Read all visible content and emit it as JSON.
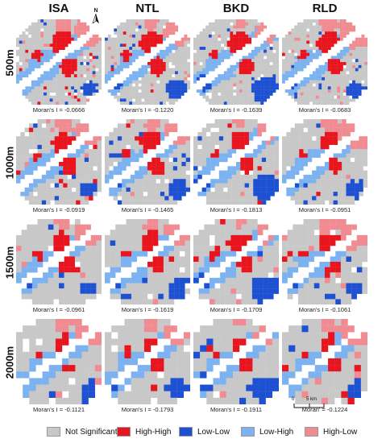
{
  "columns": [
    "ISA",
    "NTL",
    "BKD",
    "RLD"
  ],
  "rows": [
    "500m",
    "1000m",
    "1500m",
    "2000m"
  ],
  "moran": [
    [
      "Moran's I = -0.0666",
      "Moran's I = -0.1220",
      "Moran's I = -0.1639",
      "Moran's I = -0.0683"
    ],
    [
      "Moran's I = -0.0919",
      "Moran's I = -0.1465",
      "Moran's I = -0.1813",
      "Moran's I = -0.0951"
    ],
    [
      "Moran's I = -0.0961",
      "Moran's I = -0.1619",
      "Moran's I = -0.1709",
      "Moran's I = -0.1061"
    ],
    [
      "Moran's I = -0.1121",
      "Moran's I = -0.1793",
      "Moran's I = -0.1911",
      "Moran' = -0.1224"
    ]
  ],
  "legend": [
    {
      "label": "Not Significant",
      "color": "#c8c8c8"
    },
    {
      "label": "High-High",
      "color": "#e8141e"
    },
    {
      "label": "Low-Low",
      "color": "#1e50d2"
    },
    {
      "label": "Low-High",
      "color": "#7db2f0"
    },
    {
      "label": "High-Low",
      "color": "#f08c91"
    }
  ],
  "north_arrow": "N",
  "scale_bar": {
    "zero": "0",
    "value": "5 km"
  },
  "icons": {
    "north": "north-arrow-icon",
    "scale": "scale-bar-icon"
  }
}
